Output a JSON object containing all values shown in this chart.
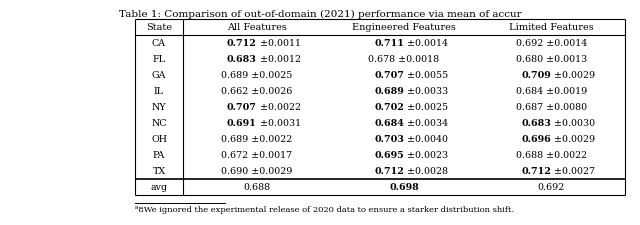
{
  "title": "Table 1: Comparison of out-of-domain (2021) performance via mean of accur",
  "headers": [
    "State",
    "All Features",
    "Engineered Features",
    "Limited Features"
  ],
  "states": [
    "CA",
    "FL",
    "GA",
    "IL",
    "NY",
    "NC",
    "OH",
    "PA",
    "TX"
  ],
  "all_feats": [
    [
      "0.712",
      "0.0011",
      true
    ],
    [
      "0.683",
      "0.0012",
      true
    ],
    [
      "0.689",
      "0.0025",
      false
    ],
    [
      "0.662",
      "0.0026",
      false
    ],
    [
      "0.707",
      "0.0022",
      true
    ],
    [
      "0.691",
      "0.0031",
      true
    ],
    [
      "0.689",
      "0.0022",
      false
    ],
    [
      "0.672",
      "0.0017",
      false
    ],
    [
      "0.690",
      "0.0029",
      false
    ]
  ],
  "eng_feats": [
    [
      "0.711",
      "0.0014",
      true
    ],
    [
      "0.678",
      "0.0018",
      false
    ],
    [
      "0.707",
      "0.0055",
      true
    ],
    [
      "0.689",
      "0.0033",
      true
    ],
    [
      "0.702",
      "0.0025",
      true
    ],
    [
      "0.684",
      "0.0034",
      true
    ],
    [
      "0.703",
      "0.0040",
      true
    ],
    [
      "0.695",
      "0.0023",
      true
    ],
    [
      "0.712",
      "0.0028",
      true
    ]
  ],
  "lim_feats": [
    [
      "0.692",
      "0.0014",
      false
    ],
    [
      "0.680",
      "0.0013",
      false
    ],
    [
      "0.709",
      "0.0029",
      true
    ],
    [
      "0.684",
      "0.0019",
      false
    ],
    [
      "0.687",
      "0.0080",
      false
    ],
    [
      "0.683",
      "0.0030",
      true
    ],
    [
      "0.696",
      "0.0029",
      true
    ],
    [
      "0.688",
      "0.0022",
      false
    ],
    [
      "0.712",
      "0.0027",
      true
    ]
  ],
  "avg_all": "0.688",
  "avg_eng": "0.698",
  "avg_lim": "0.692",
  "footnote": "8We ignored the experimental release of 2020 data to ensure a starker distribution shift."
}
